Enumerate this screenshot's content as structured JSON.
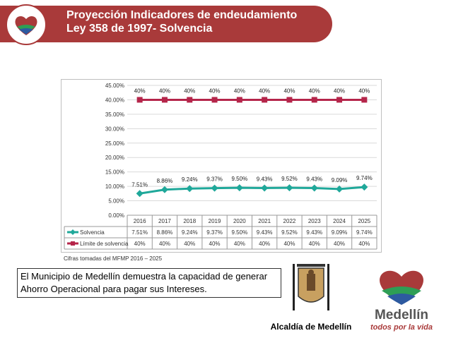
{
  "header": {
    "title_line1": "Proyección Indicadores de endeudamiento",
    "title_line2": "Ley 358 de 1997- Solvencia"
  },
  "chart_data": {
    "type": "line",
    "categories": [
      "2016",
      "2017",
      "2018",
      "2019",
      "2020",
      "2021",
      "2022",
      "2023",
      "2024",
      "2025"
    ],
    "y_ticks": [
      "0.00%",
      "5.00%",
      "10.00%",
      "15.00%",
      "20.00%",
      "25.00%",
      "30.00%",
      "35.00%",
      "40.00%",
      "45.00%"
    ],
    "ylim": [
      0,
      45
    ],
    "grid": true,
    "series": [
      {
        "name": "Solvencia",
        "values": [
          7.51,
          8.86,
          9.24,
          9.37,
          9.5,
          9.43,
          9.52,
          9.43,
          9.09,
          9.74
        ],
        "labels": [
          "7.51%",
          "8.86%",
          "9.24%",
          "9.37%",
          "9.50%",
          "9.43%",
          "9.52%",
          "9.43%",
          "9.09%",
          "9.74%"
        ],
        "color": "#1fa89a",
        "marker": "diamond"
      },
      {
        "name": "Límite de solvencia",
        "values": [
          40,
          40,
          40,
          40,
          40,
          40,
          40,
          40,
          40,
          40
        ],
        "labels": [
          "40%",
          "40%",
          "40%",
          "40%",
          "40%",
          "40%",
          "40%",
          "40%",
          "40%",
          "40%"
        ],
        "color": "#b5254a",
        "marker": "square"
      }
    ]
  },
  "source_note": "Cifras tomadas del MFMP 2016 – 2025",
  "note_text": "El Municipio de Medellín demuestra la capacidad de generar Ahorro Operacional para pagar sus Intereses.",
  "alcaldia_label": "Alcaldía de Medellín",
  "brand": {
    "name": "Medellín",
    "slogan": "todos por la vida"
  },
  "colors": {
    "header": "#a93a3a",
    "series_solvencia": "#1fa89a",
    "series_limite": "#b5254a"
  }
}
